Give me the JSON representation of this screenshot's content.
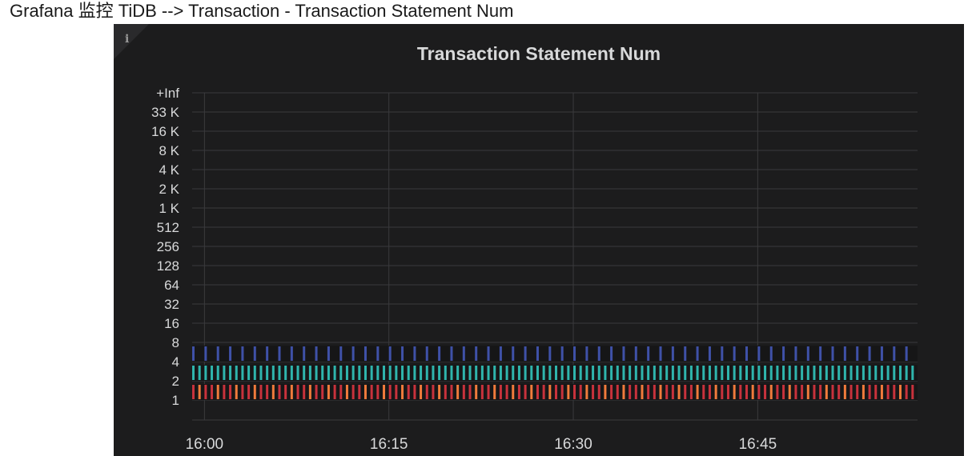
{
  "caption": "Grafana 监控 TiDB --> Transaction - Transaction Statement Num",
  "panel": {
    "title": "Transaction Statement Num",
    "info_icon": "i"
  },
  "colors": {
    "panel_bg": "#1c1c1d",
    "grid": "#3a3a3d",
    "text": "#d8d9da",
    "band_4": "#3f51a8",
    "band_2": "#2fb5ad",
    "band_1_red": "#c8323c",
    "band_1_orange": "#f07b3c"
  },
  "chart_data": {
    "type": "heatmap",
    "title": "Transaction Statement Num",
    "xlabel": "",
    "ylabel": "",
    "y_scale": "log2 buckets",
    "y_ticks": [
      "1",
      "2",
      "4",
      "8",
      "16",
      "32",
      "64",
      "128",
      "256",
      "512",
      "1 K",
      "2 K",
      "4 K",
      "8 K",
      "16 K",
      "33 K",
      "+Inf"
    ],
    "x_ticks": [
      "16:00",
      "16:15",
      "16:30",
      "16:45"
    ],
    "x_range": [
      "15:59",
      "16:58"
    ],
    "grid": true,
    "legend": "none",
    "series": [
      {
        "bucket": "4",
        "interval_minutes": 1,
        "color": "#3f51a8"
      },
      {
        "bucket": "2",
        "interval_minutes": 0.5,
        "color": "#2fb5ad"
      },
      {
        "bucket": "1",
        "interval_minutes": 0.5,
        "color": "#c8323c",
        "alt_color": "#f07b3c"
      }
    ]
  }
}
